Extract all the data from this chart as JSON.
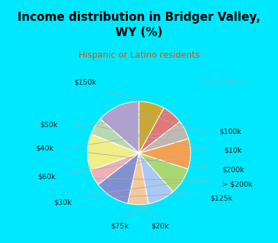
{
  "title": "Income distribution in Bridger Valley,\nWY (%)",
  "subtitle": "Hispanic or Latino residents",
  "title_color": "#000000",
  "subtitle_color": "#e05000",
  "bg_cyan": "#00e8ff",
  "bg_chart": "#e8f8ee",
  "watermark": "City-Data.com",
  "labels": [
    "$100k",
    "$10k",
    "$200k",
    "> $200k",
    "$125k",
    "$20k",
    "$75k",
    "$30k",
    "$60k",
    "$40k",
    "$50k",
    "$150k"
  ],
  "values": [
    13.5,
    5.5,
    11.5,
    5.0,
    11.0,
    6.5,
    8.5,
    8.5,
    9.5,
    6.0,
    6.5,
    8.0
  ],
  "colors": [
    "#b0a0d0",
    "#b8d8b0",
    "#f0ee88",
    "#f0b0b8",
    "#8090d0",
    "#f5c89a",
    "#a8c8f5",
    "#a8d870",
    "#f5a050",
    "#c0b8b0",
    "#e07878",
    "#c8a830"
  ],
  "startangle": 90,
  "label_fontsize": 7.5,
  "figsize": [
    4.0,
    3.5
  ],
  "dpi": 100,
  "title_fontsize": 12,
  "subtitle_fontsize": 9
}
